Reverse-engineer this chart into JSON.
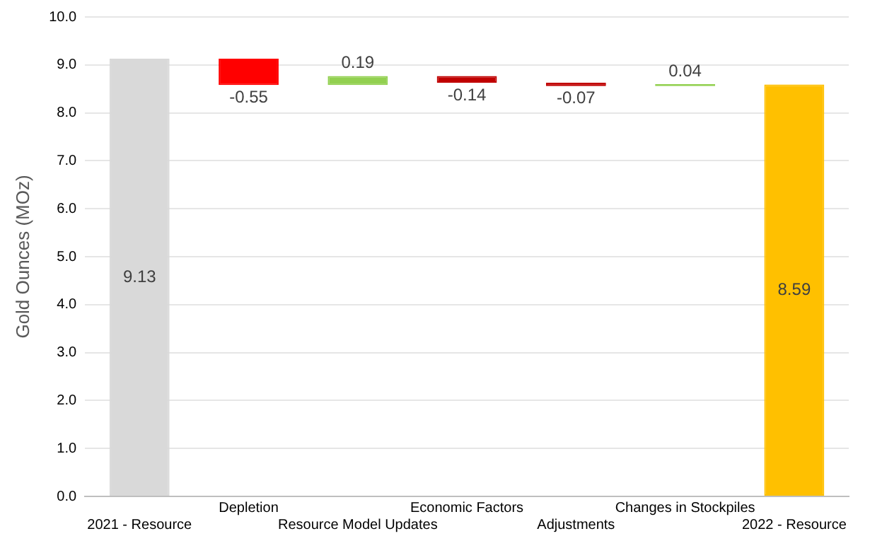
{
  "chart_data": {
    "type": "bar",
    "ylabel": "Gold Ounces (MOz)",
    "categories": [
      "2021 - Resource",
      "Depletion",
      "Resource Model Updates",
      "Economic Factors",
      "Adjustments",
      "Changes in Stockpiles",
      "2022 - Resource"
    ],
    "values": [
      9.13,
      -0.55,
      0.19,
      -0.14,
      -0.07,
      0.04,
      8.59
    ],
    "base": [
      0,
      9.13,
      8.58,
      8.77,
      8.63,
      8.56,
      0
    ],
    "colors": [
      "#d9d9d9",
      "#ff0000",
      "#92d050",
      "#c00000",
      "#c00000",
      "#92d050",
      "#ffc000"
    ],
    "ylim": [
      0,
      10
    ],
    "yticks": [
      {
        "value": 0,
        "label": "0.0"
      },
      {
        "value": 1,
        "label": "1.0"
      },
      {
        "value": 2,
        "label": "2.0"
      },
      {
        "value": 3,
        "label": "3.0"
      },
      {
        "value": 4,
        "label": "4.0"
      },
      {
        "value": 5,
        "label": "5.0"
      },
      {
        "value": 6,
        "label": "6.0"
      },
      {
        "value": 7,
        "label": "7.0"
      },
      {
        "value": 8,
        "label": "8.0"
      },
      {
        "value": 9,
        "label": "9.0"
      },
      {
        "value": 10,
        "label": "10.0"
      }
    ],
    "grid": "y",
    "data_labels": true
  }
}
